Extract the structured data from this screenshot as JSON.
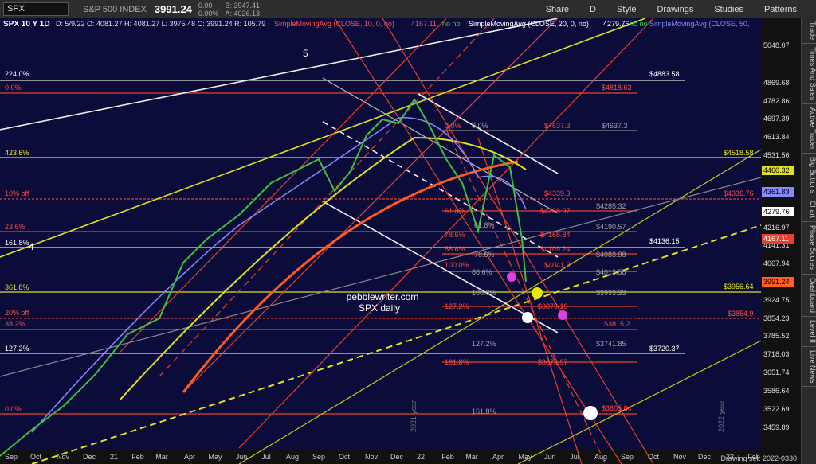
{
  "toolbar": {
    "symbol": "SPX",
    "description": "S&P 500 INDEX",
    "last": "3991.24",
    "change": "0.00",
    "change_pct": "0.00%",
    "bid": "B: 3947.41",
    "ask": "A: 4026.13",
    "buttons": [
      "Share",
      "D",
      "Style",
      "Drawings",
      "Studies",
      "Patterns"
    ]
  },
  "header": {
    "instrument": "SPX 10 Y 1D",
    "ohlc": "D: 5/9/22  O: 4081.27  H: 4081.27  L: 3975.48  C: 3991.24  R: 105.79",
    "studies": [
      {
        "name": "SimpleMovingAvg (CLOSE, 10, 0, no)",
        "value": "4167.11",
        "flags": "no  no"
      },
      {
        "name": "SimpleMovingAvg (CLOSE, 20, 0, no)",
        "value": "4279.76",
        "flags": "no  no"
      },
      {
        "name": "SimpleMovingAvg (CLOSE, 50,"
      }
    ]
  },
  "price_axis": [
    "5048.07",
    "4869.68",
    "4782.86",
    "4697.39",
    "4613.84",
    "4531.56",
    "4216.97",
    "4141.31",
    "4067.94",
    "3924.75",
    "3854.23",
    "3785.52",
    "3718.03",
    "3651.74",
    "3586.64",
    "3522.69",
    "3459.89"
  ],
  "price_tags": [
    "4460.32",
    "4361.83",
    "4279.76",
    "4167.11",
    "3991.24"
  ],
  "time_axis": [
    "Sep",
    "Oct",
    "Nov",
    "Dec",
    "21",
    "Feb",
    "Mar",
    "Apr",
    "May",
    "Jun",
    "Jul",
    "Aug",
    "Sep",
    "Oct",
    "Nov",
    "Dec",
    "22",
    "Feb",
    "Mar",
    "Apr",
    "May",
    "Jun",
    "Jul",
    "Aug",
    "Sep",
    "Oct",
    "Nov",
    "Dec",
    "23",
    "Feb"
  ],
  "annotations": [
    "224.0%",
    "0.0%",
    "423.6%",
    "10% off",
    "23.6%",
    "161.8%",
    "361.8%",
    "20% off",
    "38.2%",
    "127.2%",
    "0.0%",
    "$4883.58",
    "$4818.62",
    "0.0%",
    "0.0%",
    "$4637.3",
    "$4637.3",
    "$4518.58",
    "$4336.76",
    "$4339.3",
    "61.8%",
    "$4268.97",
    "$4285.32",
    "78.6%",
    "$4168.84",
    "$4136.15",
    "61.8%",
    "$4190.57",
    "88.6%",
    "$4109.24",
    "78.6%",
    "$4083.98",
    "100.0%",
    "$4041.3",
    "88.6%",
    "$4013.58",
    "$3956.64",
    "100.0%",
    "$3933.33",
    "127.2%",
    "$3879.19",
    "$3854.9",
    "$3815.2",
    "127.2%",
    "$3741.85",
    "$3720.37",
    "161.8%",
    "$3673.97",
    "161.8%",
    "$3605.84"
  ],
  "wave_labels": [
    "5",
    "4"
  ],
  "watermark": [
    "pebblewriter.com",
    "SPX daily"
  ],
  "year_labels": [
    "2021 year",
    "2022 year"
  ],
  "sidebar": [
    "Trade",
    "Times And Sales",
    "Active Trader",
    "Big Buttons",
    "Chart",
    "Phase Scores",
    "Dashboard",
    "Level II",
    "Live News"
  ],
  "footer": "Drawing set: 2022-0330"
}
